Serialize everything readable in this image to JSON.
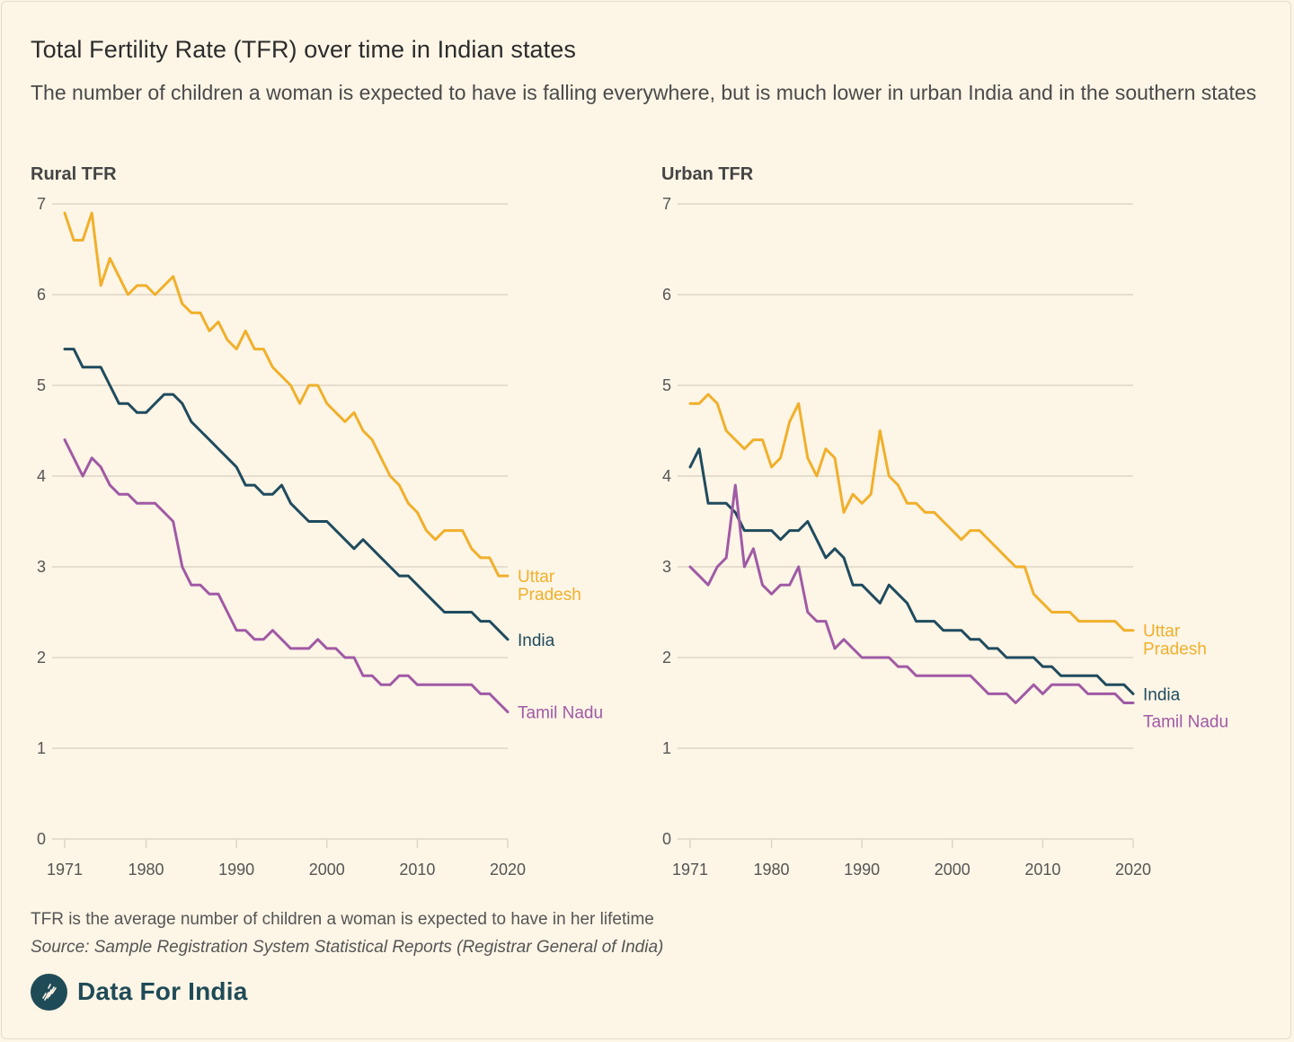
{
  "title": "Total Fertility Rate (TFR) over time in Indian states",
  "subtitle": "The number of children a woman is expected to have is falling everywhere, but is much lower in urban India and in the southern states",
  "footnote": "TFR is the average number of children a woman is expected to have in her lifetime",
  "source": "Source: Sample Registration System Statistical Reports (Registrar General of India)",
  "brand": {
    "name": "Data For India",
    "logo_icon": "data-for-india-logo-icon"
  },
  "colors": {
    "uttar_pradesh": "#f0b02c",
    "india": "#1f4b5e",
    "tamil_nadu": "#a05aa5",
    "grid": "#ddd6c6",
    "background": "#fdf5e6"
  },
  "chart_data": [
    {
      "type": "line",
      "title": "Rural TFR",
      "xlim": [
        1971,
        2020
      ],
      "ylim": [
        0,
        7
      ],
      "x_ticks": [
        1971,
        1980,
        1990,
        2000,
        2010,
        2020
      ],
      "y_ticks": [
        0,
        1,
        2,
        3,
        4,
        5,
        6,
        7
      ],
      "x": [
        1971,
        1972,
        1973,
        1974,
        1975,
        1976,
        1977,
        1978,
        1979,
        1980,
        1981,
        1982,
        1983,
        1984,
        1985,
        1986,
        1987,
        1988,
        1989,
        1990,
        1991,
        1992,
        1993,
        1994,
        1995,
        1996,
        1997,
        1998,
        1999,
        2000,
        2001,
        2002,
        2003,
        2004,
        2005,
        2006,
        2007,
        2008,
        2009,
        2010,
        2011,
        2012,
        2013,
        2014,
        2015,
        2016,
        2017,
        2018,
        2019,
        2020
      ],
      "series": [
        {
          "name": "Uttar Pradesh",
          "label": "Uttar Pradesh",
          "color_key": "uttar_pradesh",
          "values": [
            6.9,
            6.6,
            6.6,
            6.9,
            6.1,
            6.4,
            6.2,
            6.0,
            6.1,
            6.1,
            6.0,
            6.1,
            6.2,
            5.9,
            5.8,
            5.8,
            5.6,
            5.7,
            5.5,
            5.4,
            5.6,
            5.4,
            5.4,
            5.2,
            5.1,
            5.0,
            4.8,
            5.0,
            5.0,
            4.8,
            4.7,
            4.6,
            4.7,
            4.5,
            4.4,
            4.2,
            4.0,
            3.9,
            3.7,
            3.6,
            3.4,
            3.3,
            3.4,
            3.4,
            3.4,
            3.2,
            3.1,
            3.1,
            2.9,
            2.9
          ]
        },
        {
          "name": "India",
          "label": "India",
          "color_key": "india",
          "values": [
            5.4,
            5.4,
            5.2,
            5.2,
            5.2,
            5.0,
            4.8,
            4.8,
            4.7,
            4.7,
            4.8,
            4.9,
            4.9,
            4.8,
            4.6,
            4.5,
            4.4,
            4.3,
            4.2,
            4.1,
            3.9,
            3.9,
            3.8,
            3.8,
            3.9,
            3.7,
            3.6,
            3.5,
            3.5,
            3.5,
            3.4,
            3.3,
            3.2,
            3.3,
            3.2,
            3.1,
            3.0,
            2.9,
            2.9,
            2.8,
            2.7,
            2.6,
            2.5,
            2.5,
            2.5,
            2.5,
            2.4,
            2.4,
            2.3,
            2.2
          ]
        },
        {
          "name": "Tamil Nadu",
          "label": "Tamil Nadu",
          "color_key": "tamil_nadu",
          "values": [
            4.4,
            4.2,
            4.0,
            4.2,
            4.1,
            3.9,
            3.8,
            3.8,
            3.7,
            3.7,
            3.7,
            3.6,
            3.5,
            3.0,
            2.8,
            2.8,
            2.7,
            2.7,
            2.5,
            2.3,
            2.3,
            2.2,
            2.2,
            2.3,
            2.2,
            2.1,
            2.1,
            2.1,
            2.2,
            2.1,
            2.1,
            2.0,
            2.0,
            1.8,
            1.8,
            1.7,
            1.7,
            1.8,
            1.8,
            1.7,
            1.7,
            1.7,
            1.7,
            1.7,
            1.7,
            1.7,
            1.6,
            1.6,
            1.5,
            1.4
          ]
        }
      ]
    },
    {
      "type": "line",
      "title": "Urban TFR",
      "xlim": [
        1971,
        2020
      ],
      "ylim": [
        0,
        7
      ],
      "x_ticks": [
        1971,
        1980,
        1990,
        2000,
        2010,
        2020
      ],
      "y_ticks": [
        0,
        1,
        2,
        3,
        4,
        5,
        6,
        7
      ],
      "x": [
        1971,
        1972,
        1973,
        1974,
        1975,
        1976,
        1977,
        1978,
        1979,
        1980,
        1981,
        1982,
        1983,
        1984,
        1985,
        1986,
        1987,
        1988,
        1989,
        1990,
        1991,
        1992,
        1993,
        1994,
        1995,
        1996,
        1997,
        1998,
        1999,
        2000,
        2001,
        2002,
        2003,
        2004,
        2005,
        2006,
        2007,
        2008,
        2009,
        2010,
        2011,
        2012,
        2013,
        2014,
        2015,
        2016,
        2017,
        2018,
        2019,
        2020
      ],
      "series": [
        {
          "name": "Uttar Pradesh",
          "label": "Uttar Pradesh",
          "color_key": "uttar_pradesh",
          "values": [
            4.8,
            4.8,
            4.9,
            4.8,
            4.5,
            4.4,
            4.3,
            4.4,
            4.4,
            4.1,
            4.2,
            4.6,
            4.8,
            4.2,
            4.0,
            4.3,
            4.2,
            3.6,
            3.8,
            3.7,
            3.8,
            4.5,
            4.0,
            3.9,
            3.7,
            3.7,
            3.6,
            3.6,
            3.5,
            3.4,
            3.3,
            3.4,
            3.4,
            3.3,
            3.2,
            3.1,
            3.0,
            3.0,
            2.7,
            2.6,
            2.5,
            2.5,
            2.5,
            2.4,
            2.4,
            2.4,
            2.4,
            2.4,
            2.3,
            2.3
          ]
        },
        {
          "name": "India",
          "label": "India",
          "color_key": "india",
          "values": [
            4.1,
            4.3,
            3.7,
            3.7,
            3.7,
            3.6,
            3.4,
            3.4,
            3.4,
            3.4,
            3.3,
            3.4,
            3.4,
            3.5,
            3.3,
            3.1,
            3.2,
            3.1,
            2.8,
            2.8,
            2.7,
            2.6,
            2.8,
            2.7,
            2.6,
            2.4,
            2.4,
            2.4,
            2.3,
            2.3,
            2.3,
            2.2,
            2.2,
            2.1,
            2.1,
            2.0,
            2.0,
            2.0,
            2.0,
            1.9,
            1.9,
            1.8,
            1.8,
            1.8,
            1.8,
            1.8,
            1.7,
            1.7,
            1.7,
            1.6
          ]
        },
        {
          "name": "Tamil Nadu",
          "label": "Tamil Nadu",
          "color_key": "tamil_nadu",
          "values": [
            3.0,
            2.9,
            2.8,
            3.0,
            3.1,
            3.9,
            3.0,
            3.2,
            2.8,
            2.7,
            2.8,
            2.8,
            3.0,
            2.5,
            2.4,
            2.4,
            2.1,
            2.2,
            2.1,
            2.0,
            2.0,
            2.0,
            2.0,
            1.9,
            1.9,
            1.8,
            1.8,
            1.8,
            1.8,
            1.8,
            1.8,
            1.8,
            1.7,
            1.6,
            1.6,
            1.6,
            1.5,
            1.6,
            1.7,
            1.6,
            1.7,
            1.7,
            1.7,
            1.7,
            1.6,
            1.6,
            1.6,
            1.6,
            1.5,
            1.5
          ]
        }
      ]
    }
  ]
}
